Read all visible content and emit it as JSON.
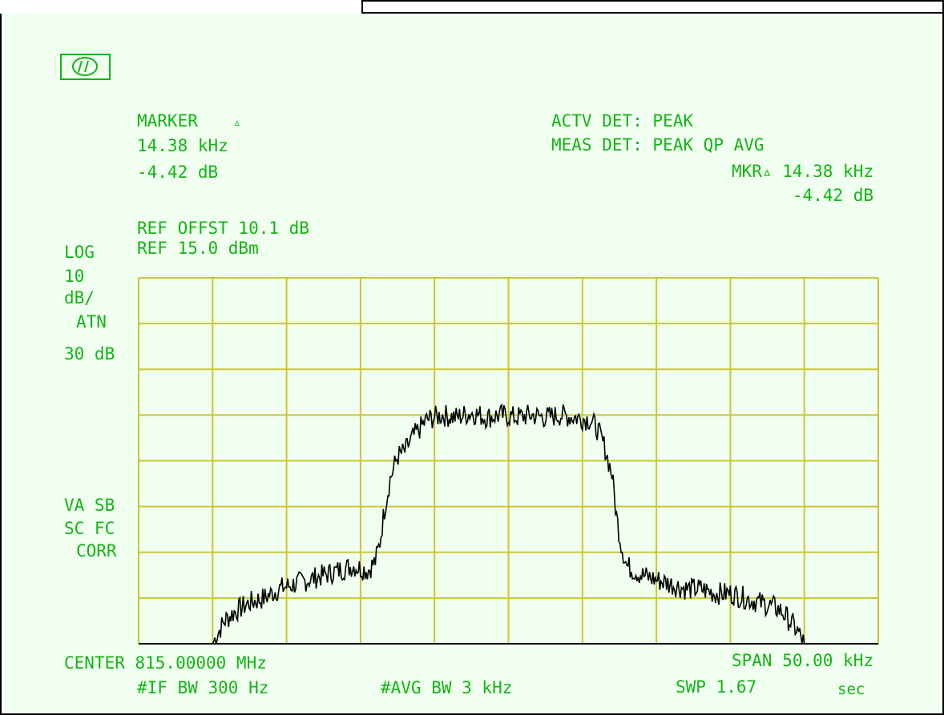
{
  "colors": {
    "screen_bg": "#f0fff0",
    "annotation_text": "#14b414",
    "graticule": "#c8c832",
    "trace": "#000000"
  },
  "logo_icon": "hp-logo-icon",
  "marker": {
    "title": "MARKER",
    "title_symbol": "▵",
    "freq": "14.38 kHz",
    "amplitude": "-4.42 dB"
  },
  "detector": {
    "active": "ACTV DET: PEAK",
    "measure": "MEAS DET: PEAK QP AVG"
  },
  "marker_delta": {
    "label": "MKR▵ 14.38 kHz",
    "amplitude": "-4.42 dB"
  },
  "reference": {
    "offset": "REF OFFST 10.1 dB",
    "level": "REF 15.0 dBm"
  },
  "scale": {
    "mode": "LOG",
    "per_div_value": "10",
    "per_div_unit": "dB/",
    "atten_label": "ATN",
    "atten_value": "30 dB"
  },
  "status": {
    "line1": "VA SB",
    "line2": "SC FC",
    "line3": "CORR"
  },
  "footer": {
    "center": "CENTER 815.00000 MHz",
    "span": "SPAN 50.00 kHz",
    "if_bw": "#IF BW 300 Hz",
    "avg_bw": "#AVG BW 3 kHz",
    "sweep": "SWP 1.67",
    "sweep_unit": "sec"
  },
  "chart_data": {
    "type": "line",
    "title": "",
    "xlabel": "",
    "ylabel": "",
    "x_unit": "kHz offset from center",
    "y_unit": "dBm",
    "xlim": [
      -25,
      25
    ],
    "ylim": [
      -65,
      15
    ],
    "grid": true,
    "x_divisions": 10,
    "y_divisions": 8,
    "series": [
      {
        "values_x": [
          -20,
          -19.7,
          -19.2,
          -18.5,
          -17.5,
          -16.5,
          -15.5,
          -14.5,
          -13.5,
          -12.5,
          -11.5,
          -10.5,
          -9.5,
          -9.0,
          -8.7,
          -8.4,
          -8.0,
          -7.5,
          -7.0,
          -6.5,
          -5.5,
          -4.5,
          -3.5,
          -2.5,
          -1.5,
          -0.5,
          0.5,
          1.5,
          2.5,
          3.5,
          4.5,
          5.5,
          6.0,
          6.5,
          7.0,
          7.3,
          7.6,
          8.0,
          8.5,
          9.0,
          10.0,
          11.0,
          12.0,
          13.0,
          14.0,
          15.0,
          16.0,
          17.0,
          18.0,
          18.5,
          19.0,
          19.5,
          20.0
        ],
        "values_y": [
          -65,
          -63,
          -60,
          -58,
          -56,
          -55,
          -53,
          -52,
          -51,
          -50,
          -49,
          -48,
          -49,
          -47,
          -43,
          -36,
          -29,
          -24,
          -23,
          -20,
          -16,
          -15,
          -15.5,
          -14.5,
          -15.5,
          -15,
          -15.5,
          -15,
          -15.5,
          -15,
          -15.5,
          -16,
          -18,
          -22,
          -28,
          -37,
          -43,
          -48,
          -49,
          -50,
          -51,
          -52,
          -53,
          -53,
          -54,
          -54,
          -55,
          -56,
          -57,
          -58,
          -60,
          -62,
          -65
        ]
      }
    ]
  }
}
